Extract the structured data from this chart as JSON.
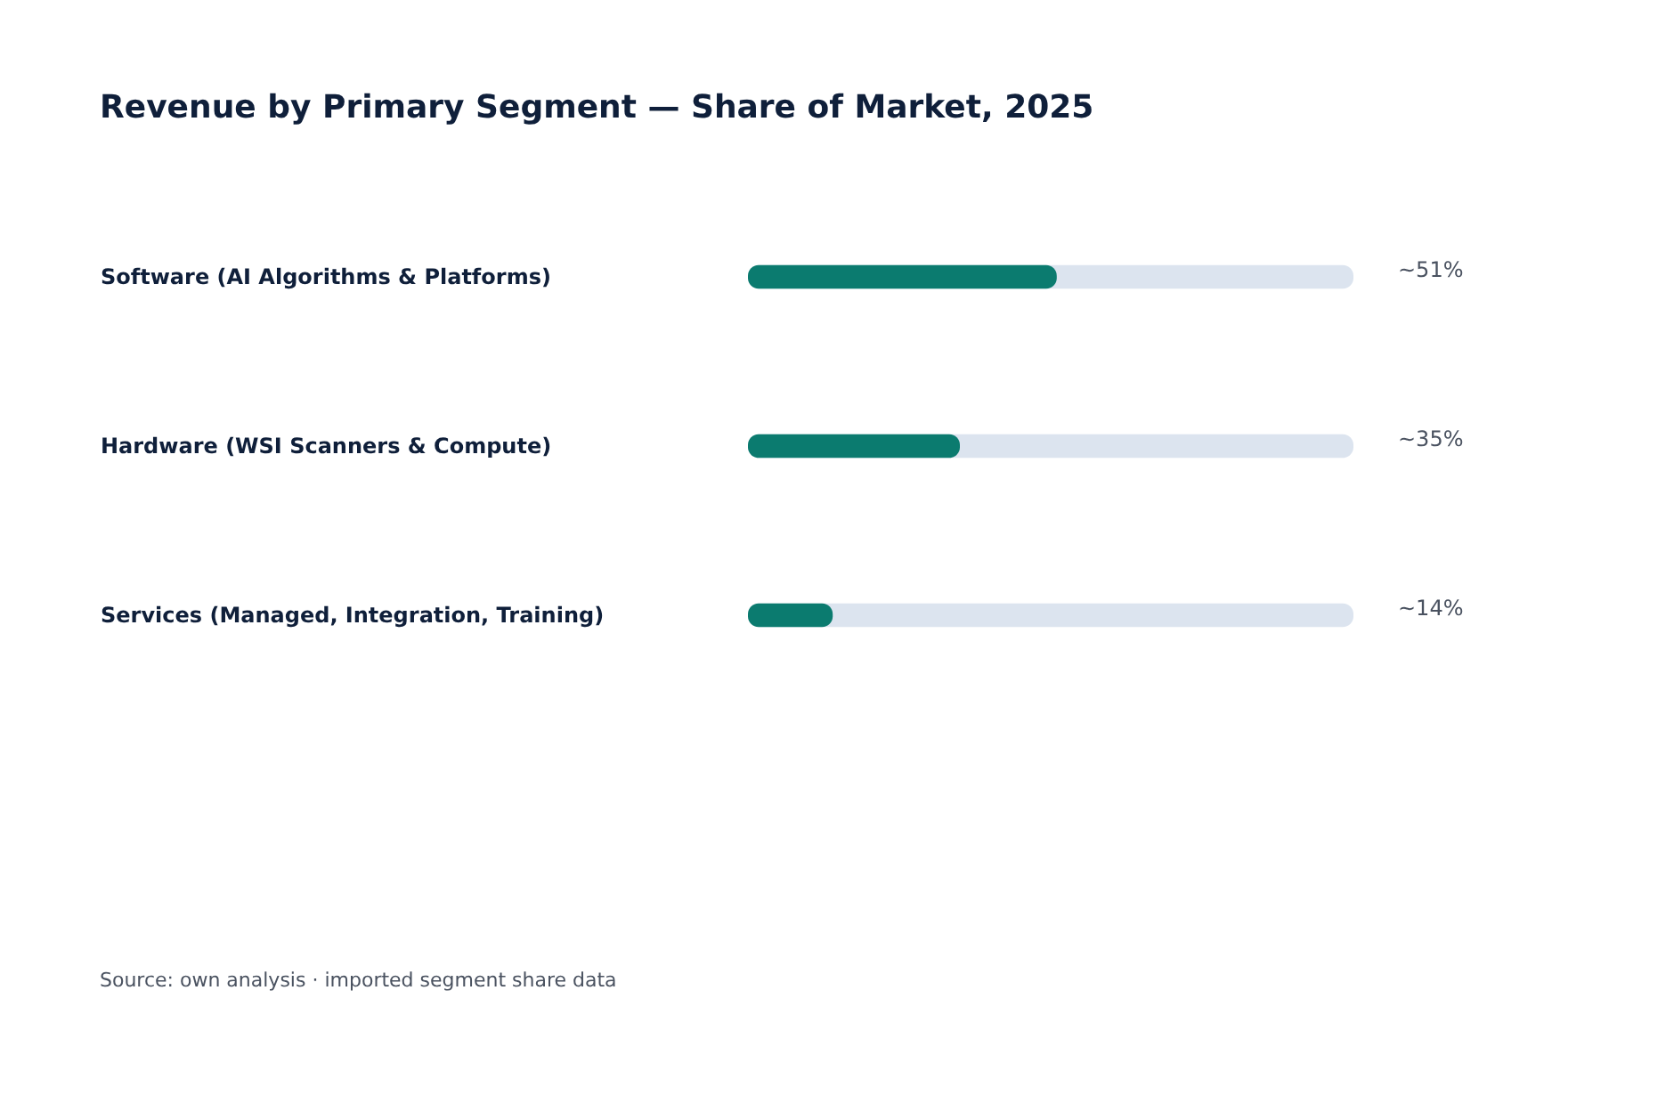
{
  "chart_data": {
    "type": "bar",
    "orientation": "horizontal",
    "title": "Revenue by Primary Segment — Share of Market, 2025",
    "categories": [
      "Software (AI Algorithms & Platforms)",
      "Hardware (WSI Scanners & Compute)",
      "Services (Managed, Integration, Training)"
    ],
    "series": [
      {
        "color": "#0b7b6f",
        "values": [
          51,
          35,
          14
        ],
        "value_labels": [
          "~51%",
          "~35%",
          "~14%"
        ]
      }
    ],
    "xlim": [
      0,
      100
    ],
    "tick_labels": "y",
    "grid": false,
    "annotations": [
      "Source: own analysis · imported segment share data"
    ]
  }
}
